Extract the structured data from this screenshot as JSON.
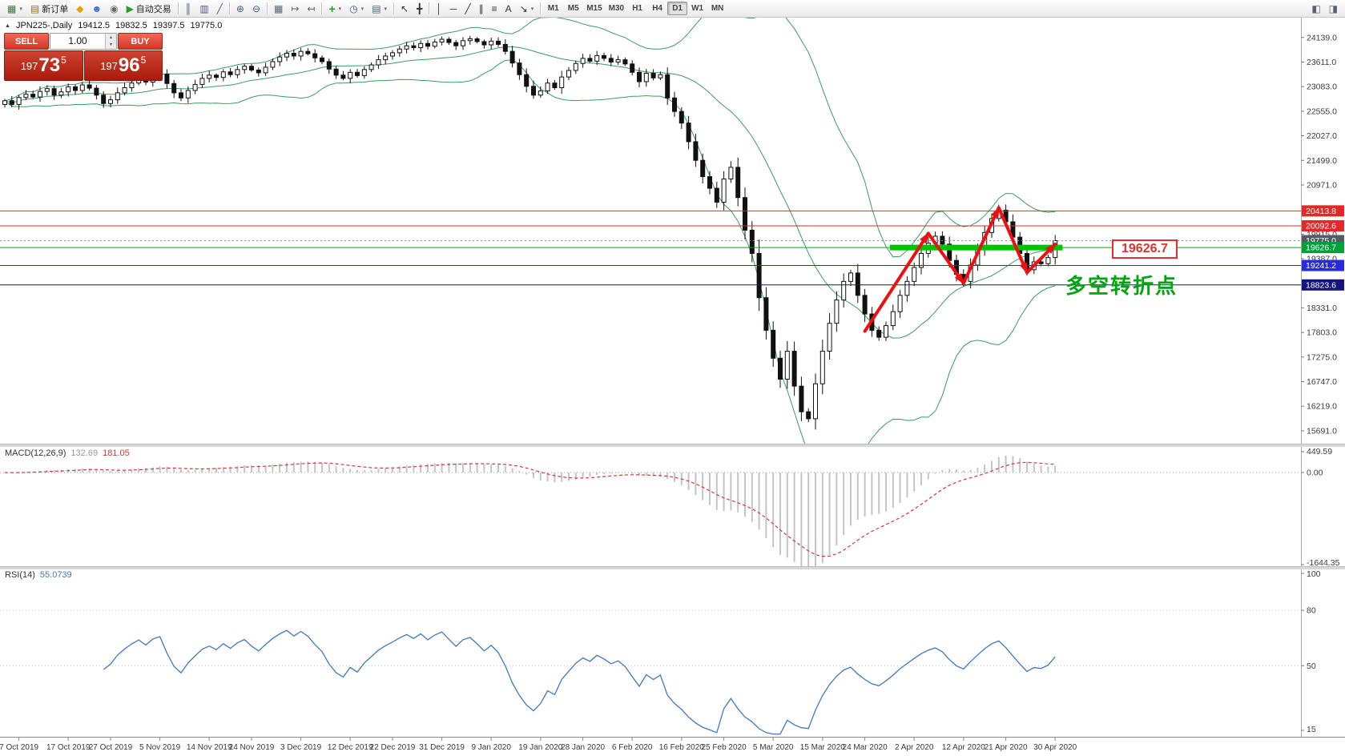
{
  "toolbar": {
    "groups": [
      [
        {
          "name": "new-chart-icon",
          "glyph": "▦",
          "color": "#3f6f3f",
          "arrow": true
        },
        {
          "name": "new-order-button",
          "icon": "order-ticket-icon",
          "glyph": "▤",
          "color": "#8a6d1f",
          "label": "新订单"
        },
        {
          "name": "finance-icon",
          "glyph": "◆",
          "color": "#e2a400"
        },
        {
          "name": "community-icon",
          "glyph": "☻",
          "color": "#3d6fd0"
        },
        {
          "name": "market-watch-icon",
          "glyph": "◉",
          "color": "#6a6a6a"
        },
        {
          "name": "auto-trading-button",
          "icon": "play-icon",
          "glyph": "▶",
          "color": "#1fa11f",
          "label": "自动交易"
        }
      ],
      [
        {
          "name": "bar-chart-icon",
          "glyph": "║",
          "color": "#4a5b73"
        },
        {
          "name": "candle-chart-icon",
          "glyph": "▥",
          "color": "#4a5b73"
        },
        {
          "name": "line-chart-icon",
          "glyph": "╱",
          "color": "#4a5b73"
        }
      ],
      [
        {
          "name": "zoom-in-icon",
          "glyph": "⊕",
          "color": "#44617d"
        },
        {
          "name": "zoom-out-icon",
          "glyph": "⊖",
          "color": "#44617d"
        }
      ],
      [
        {
          "name": "tile-windows-icon",
          "glyph": "▦",
          "color": "#57636f"
        },
        {
          "name": "auto-scroll-icon",
          "glyph": "↦",
          "color": "#57636f"
        },
        {
          "name": "chart-shift-icon",
          "glyph": "↤",
          "color": "#57636f"
        }
      ],
      [
        {
          "name": "indicators-icon",
          "glyph": "+",
          "color": "#1fa11f",
          "arrow": true
        },
        {
          "name": "periods-icon",
          "glyph": "◷",
          "color": "#44617d",
          "arrow": true
        },
        {
          "name": "templates-icon",
          "glyph": "▤",
          "color": "#44617d",
          "arrow": true
        }
      ],
      [
        {
          "name": "cursor-icon",
          "glyph": "↖",
          "color": "#333333"
        },
        {
          "name": "crosshair-icon",
          "glyph": "╋",
          "color": "#333333"
        }
      ],
      [
        {
          "name": "vertical-line-icon",
          "glyph": "│",
          "color": "#333333"
        },
        {
          "name": "horizontal-line-icon",
          "glyph": "─",
          "color": "#333333"
        },
        {
          "name": "trendline-icon",
          "glyph": "╱",
          "color": "#333333"
        },
        {
          "name": "channel-icon",
          "glyph": "∥",
          "color": "#333333"
        },
        {
          "name": "fibonacci-icon",
          "glyph": "≡",
          "color": "#333333"
        },
        {
          "name": "text-icon",
          "glyph": "A",
          "color": "#333333"
        },
        {
          "name": "arrow-tool-icon",
          "glyph": "↘",
          "color": "#333333",
          "arrow": true
        }
      ]
    ],
    "timeframes": {
      "items": [
        "M1",
        "M5",
        "M15",
        "M30",
        "H1",
        "H4",
        "D1",
        "W1",
        "MN"
      ],
      "active": "D1"
    },
    "right_icons": [
      {
        "name": "dock-left-icon",
        "glyph": "◧",
        "color": "#57636f"
      },
      {
        "name": "dock-right-icon",
        "glyph": "◨",
        "color": "#57636f"
      }
    ]
  },
  "symbol_header": {
    "symbol": "JPN225-,Daily",
    "open": "19412.5",
    "high": "19832.5",
    "low": "19397.5",
    "close": "19775.0"
  },
  "trade_panel": {
    "sell_label": "SELL",
    "buy_label": "BUY",
    "volume": "1.00",
    "sell_price": "19773.5",
    "buy_price": "19796.5"
  },
  "indicators": {
    "macd": {
      "title": "MACD(12,26,9)",
      "value_main": "132.69",
      "value_signal": "181.05",
      "axis_max": "449.59",
      "axis_zero": "0.00",
      "axis_min": "-1644.35"
    },
    "rsi": {
      "title": "RSI(14)",
      "value": "55.0739",
      "axis_labels": [
        "100",
        "80",
        "50",
        "15"
      ]
    }
  },
  "price_scale": {
    "gridline_values": [
      24139,
      23611,
      23083,
      22555,
      22027,
      21499,
      20971,
      19915,
      19387,
      18331,
      17803,
      17275,
      16747,
      16219,
      15691
    ]
  },
  "levels": [
    {
      "name": "resistance-line-upper",
      "price": 20413.8,
      "label": "20413.8",
      "color": "#e22828",
      "label_bg": "#e22828",
      "style": "solid"
    },
    {
      "name": "resistance-line-lower",
      "price": 20092.6,
      "label": "20092.6",
      "color": "#e22828",
      "label_bg": "#e22828",
      "style": "solid"
    },
    {
      "name": "last-price-line",
      "price": 19775.0,
      "label": "19775.0",
      "color": "#8d8d8d",
      "label_bg": "#565b61",
      "style": "dotted"
    },
    {
      "name": "support-line-green",
      "price": 19626.7,
      "label": "19626.7",
      "color": "#00a818",
      "label_bg": "#00a138",
      "style": "solid"
    },
    {
      "name": "support-line-blue",
      "price": 19241.2,
      "label": "19241.2",
      "color": "#2929dd",
      "label_bg": "#2929dd",
      "style": "solid"
    },
    {
      "name": "support-line-navy",
      "price": 18823.6,
      "label": "18823.6",
      "color": "#14147d",
      "label_bg": "#14147d",
      "style": "solid"
    }
  ],
  "annotations": {
    "support_band": {
      "price": 19626.7,
      "bar_start": 126,
      "bar_end": 149.6,
      "color": "#00c400"
    },
    "zigzag": {
      "color": "#ee1010",
      "points": [
        [
          122,
          17830
        ],
        [
          131,
          19930
        ],
        [
          136,
          18860
        ],
        [
          141,
          20480
        ],
        [
          145,
          19090
        ],
        [
          149,
          19700
        ]
      ]
    },
    "callout": {
      "text": "19626.7",
      "color": "#e03030"
    },
    "turning_point": {
      "text": "多空转折点",
      "color": "#00a510"
    }
  },
  "date_axis": [
    "7 Oct 2019",
    "17 Oct 2019",
    "27 Oct 2019",
    "5 Nov 2019",
    "14 Nov 2019",
    "24 Nov 2019",
    "3 Dec 2019",
    "12 Dec 2019",
    "22 Dec 2019",
    "31 Dec 2019",
    "9 Jan 2020",
    "19 Jan 2020",
    "28 Jan 2020",
    "6 Feb 2020",
    "16 Feb 2020",
    "25 Feb 2020",
    "5 Mar 2020",
    "15 Mar 2020",
    "24 Mar 2020",
    "2 Apr 2020",
    "12 Apr 2020",
    "21 Apr 2020",
    "30 Apr 2020"
  ],
  "chart_data": {
    "type": "candlestick",
    "symbol": "JPN225",
    "timeframe": "Daily",
    "ylim": [
      15381,
      24565
    ],
    "overlays": {
      "bollinger_period": 20,
      "bollinger_deviation": 2
    },
    "macd_params": [
      12,
      26,
      9
    ],
    "rsi_period": 14,
    "closes": [
      22780,
      22700,
      22850,
      22920,
      22860,
      22980,
      23040,
      22900,
      22970,
      23080,
      23000,
      23120,
      23050,
      22900,
      22720,
      22800,
      22950,
      23060,
      23160,
      23240,
      23180,
      23300,
      23350,
      23150,
      22950,
      22840,
      23000,
      23130,
      23260,
      23330,
      23280,
      23400,
      23340,
      23450,
      23520,
      23440,
      23380,
      23500,
      23620,
      23720,
      23800,
      23740,
      23840,
      23790,
      23700,
      23620,
      23460,
      23330,
      23260,
      23390,
      23320,
      23450,
      23550,
      23660,
      23740,
      23810,
      23890,
      23960,
      23920,
      24010,
      23950,
      24040,
      24100,
      24030,
      23960,
      24070,
      24110,
      24050,
      23980,
      24060,
      23990,
      23840,
      23590,
      23340,
      23090,
      22900,
      22990,
      23160,
      23060,
      23290,
      23430,
      23580,
      23690,
      23630,
      23750,
      23690,
      23610,
      23660,
      23570,
      23390,
      23190,
      23370,
      23270,
      23340,
      22840,
      22550,
      22300,
      21900,
      21500,
      21150,
      20900,
      20600,
      21100,
      21350,
      20700,
      20000,
      19500,
      18550,
      17850,
      17250,
      16800,
      17400,
      16650,
      16100,
      15950,
      16700,
      17400,
      18000,
      18500,
      18900,
      19080,
      18600,
      18200,
      17850,
      17700,
      17950,
      18250,
      18600,
      18900,
      19200,
      19500,
      19720,
      19870,
      19700,
      19350,
      19050,
      18900,
      19250,
      19600,
      19950,
      20250,
      20430,
      20180,
      19850,
      19500,
      19150,
      19320,
      19280,
      19412,
      19775
    ]
  }
}
